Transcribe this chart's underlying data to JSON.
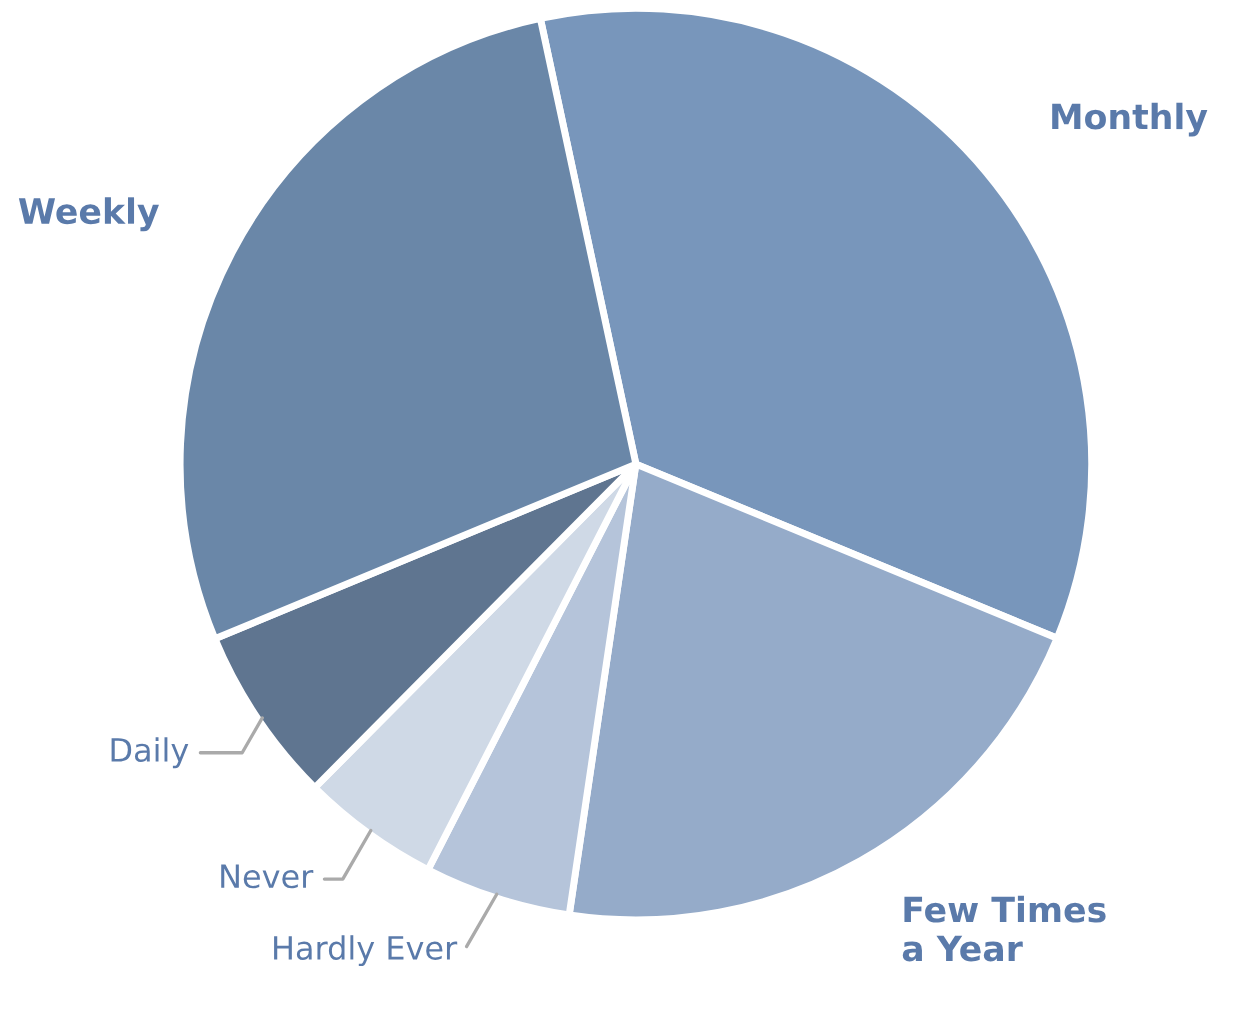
{
  "chart_data": {
    "type": "pie",
    "categories": [
      "Monthly",
      "Few Times\na Year",
      "Hardly Ever",
      "Never",
      "Daily",
      "Weekly"
    ],
    "values": [
      34.6,
      21.1,
      5.2,
      4.9,
      6.3,
      27.9
    ],
    "colors": [
      "#7896bb",
      "#95abc9",
      "#b5c4da",
      "#cfd9e6",
      "#5f7590",
      "#6a87a8"
    ],
    "legend": false
  }
}
